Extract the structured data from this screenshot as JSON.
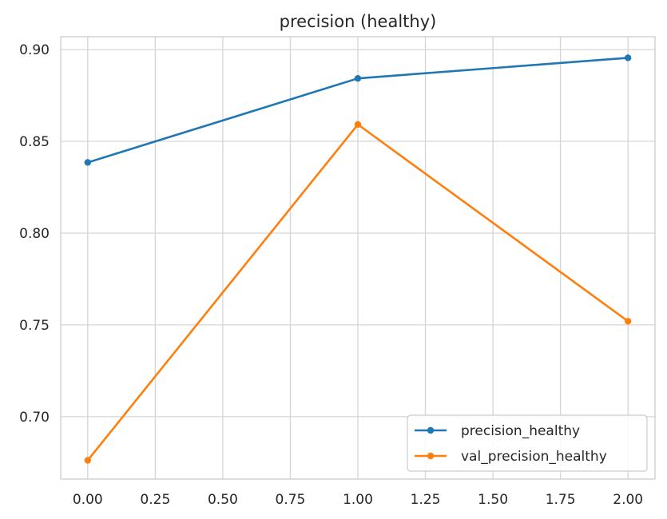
{
  "chart_data": {
    "type": "line",
    "title": "precision (healthy)",
    "xlabel": "",
    "ylabel": "",
    "x": [
      0,
      1,
      2
    ],
    "xlim": [
      -0.1,
      2.1
    ],
    "ylim": [
      0.666,
      0.907
    ],
    "xticks": [
      0.0,
      0.25,
      0.5,
      0.75,
      1.0,
      1.25,
      1.5,
      1.75,
      2.0
    ],
    "xtick_labels": [
      "0.00",
      "0.25",
      "0.50",
      "0.75",
      "1.00",
      "1.25",
      "1.50",
      "1.75",
      "2.00"
    ],
    "yticks": [
      0.7,
      0.75,
      0.8,
      0.85,
      0.9
    ],
    "ytick_labels": [
      "0.70",
      "0.75",
      "0.80",
      "0.85",
      "0.90"
    ],
    "grid": true,
    "legend_position": "lower-right",
    "series": [
      {
        "name": "precision_healthy",
        "color": "#1f77b4",
        "values": [
          0.8385,
          0.8843,
          0.8955
        ]
      },
      {
        "name": "val_precision_healthy",
        "color": "#ff7f0e",
        "values": [
          0.6762,
          0.8592,
          0.752
        ]
      }
    ]
  }
}
